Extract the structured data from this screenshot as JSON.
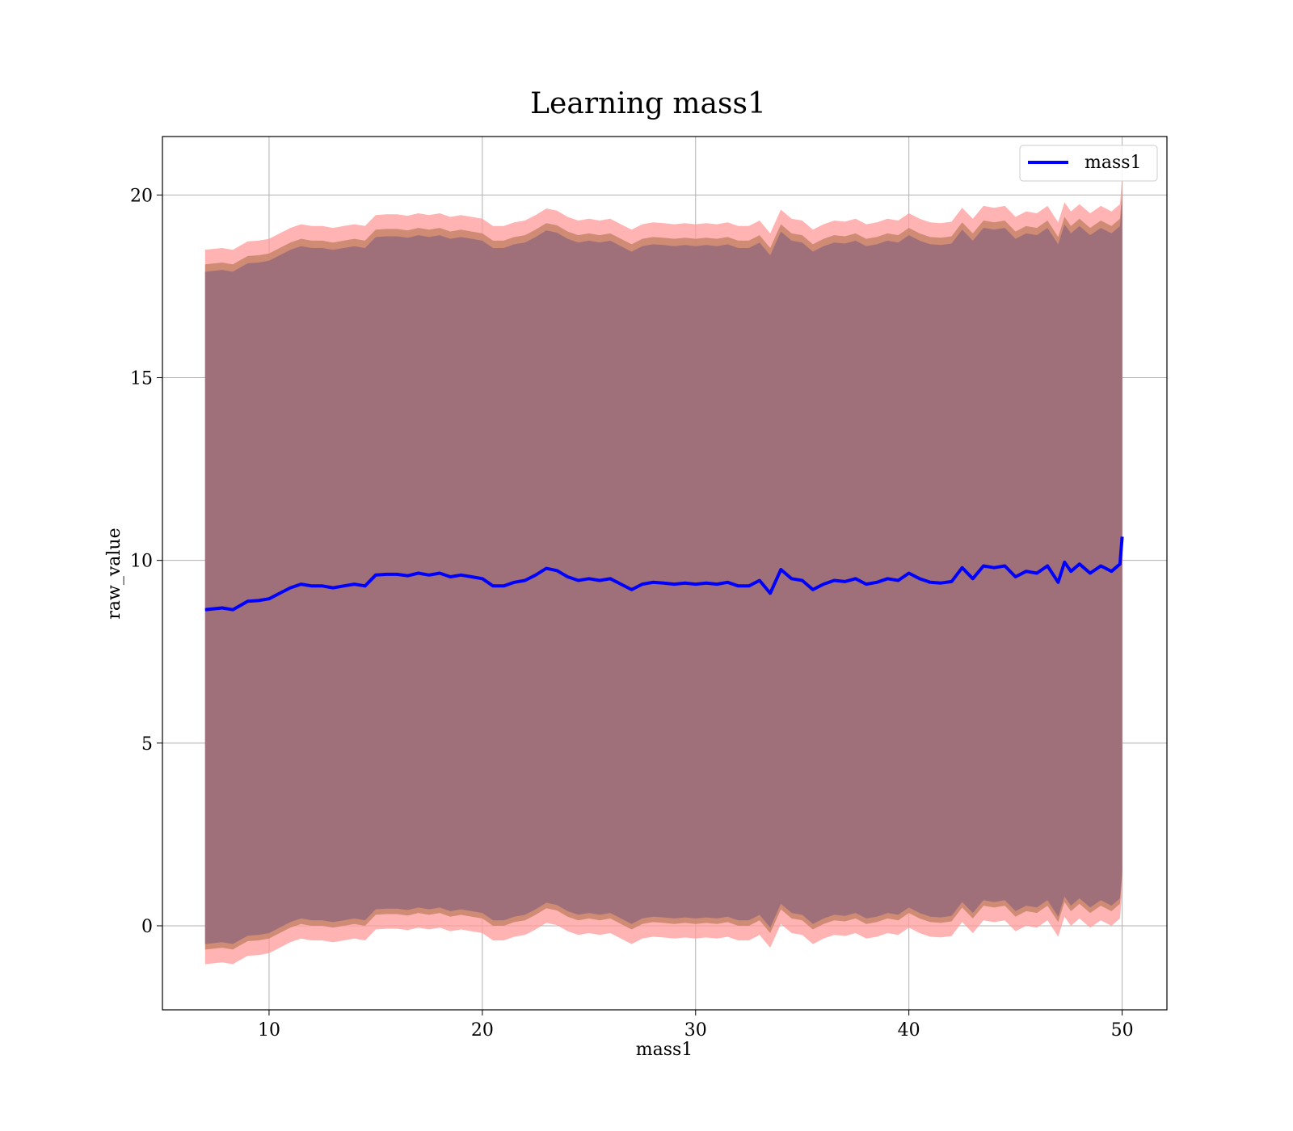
{
  "chart_data": {
    "type": "line",
    "title": "Learning mass1",
    "xlabel": "mass1",
    "ylabel": "raw_value",
    "xlim": [
      5,
      52.1
    ],
    "ylim": [
      -2.3,
      21.6
    ],
    "xticks": [
      10,
      20,
      30,
      40,
      50
    ],
    "yticks": [
      0,
      5,
      10,
      15,
      20
    ],
    "grid": true,
    "legend": {
      "position": "top-right",
      "entries": [
        "mass1"
      ]
    },
    "colors": {
      "line": "#0000ff",
      "outer_band": "#ff9999",
      "middle_band": "#c8846a",
      "inner_band": "#a0707a",
      "grid": "#b0b0b0"
    },
    "series": [
      {
        "name": "mass1",
        "x": [
          7,
          7.8,
          8.3,
          8.6,
          9.0,
          9.5,
          10.0,
          10.5,
          11.0,
          11.5,
          12.0,
          12.5,
          13.0,
          13.5,
          14.0,
          14.5,
          15.0,
          15.5,
          16.0,
          16.5,
          17.0,
          17.5,
          18.0,
          18.5,
          19.0,
          19.5,
          20.0,
          20.5,
          21.0,
          21.5,
          22.0,
          22.5,
          23.0,
          23.5,
          24.0,
          24.5,
          25.0,
          25.5,
          26.0,
          26.5,
          27.0,
          27.5,
          28.0,
          28.5,
          29.0,
          29.5,
          30.0,
          30.5,
          31.0,
          31.5,
          32.0,
          32.5,
          33.0,
          33.5,
          34.0,
          34.5,
          35.0,
          35.5,
          36.0,
          36.5,
          37.0,
          37.5,
          38.0,
          38.5,
          39.0,
          39.5,
          40.0,
          40.5,
          41.0,
          41.5,
          42.0,
          42.5,
          43.0,
          43.5,
          44.0,
          44.5,
          45.0,
          45.5,
          46.0,
          46.5,
          47.0,
          47.3,
          47.6,
          48.0,
          48.5,
          49.0,
          49.5,
          49.9,
          50.0
        ],
        "values": [
          8.65,
          8.7,
          8.65,
          8.75,
          8.88,
          8.9,
          8.95,
          9.1,
          9.25,
          9.35,
          9.3,
          9.3,
          9.25,
          9.3,
          9.35,
          9.3,
          9.6,
          9.62,
          9.62,
          9.58,
          9.65,
          9.6,
          9.65,
          9.55,
          9.6,
          9.55,
          9.5,
          9.3,
          9.3,
          9.4,
          9.45,
          9.6,
          9.78,
          9.72,
          9.55,
          9.45,
          9.5,
          9.45,
          9.5,
          9.35,
          9.2,
          9.35,
          9.4,
          9.38,
          9.35,
          9.38,
          9.35,
          9.38,
          9.35,
          9.4,
          9.3,
          9.3,
          9.45,
          9.1,
          9.75,
          9.5,
          9.45,
          9.2,
          9.35,
          9.45,
          9.42,
          9.5,
          9.35,
          9.4,
          9.5,
          9.45,
          9.65,
          9.5,
          9.4,
          9.38,
          9.42,
          9.8,
          9.5,
          9.85,
          9.8,
          9.85,
          9.55,
          9.7,
          9.65,
          9.85,
          9.4,
          9.95,
          9.7,
          9.9,
          9.65,
          9.85,
          9.7,
          9.9,
          10.65
        ]
      }
    ],
    "bands": {
      "outer": {
        "lower_offset": -9.7,
        "upper_offset": 9.85
      },
      "middle": {
        "lower_offset": -9.3,
        "upper_offset": 9.45
      },
      "inner": {
        "lower_offset": -9.15,
        "upper_offset": 9.25
      }
    }
  }
}
